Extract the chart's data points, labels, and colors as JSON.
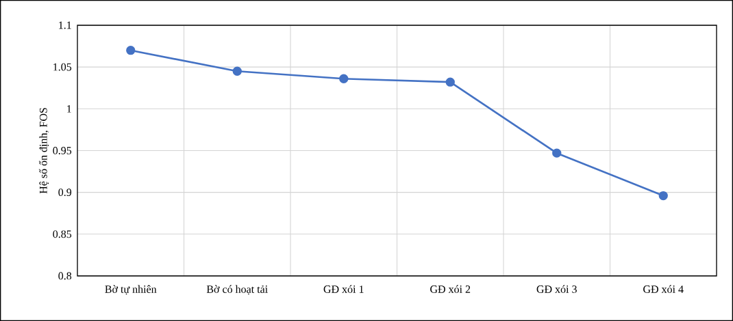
{
  "chart_data": {
    "type": "line",
    "ylabel": "Hệ số ổn định, FOS",
    "categories": [
      "Bờ tự nhiên",
      "Bờ có hoạt tải",
      "GĐ xói 1",
      "GĐ xói 2",
      "GĐ xói 3",
      "GĐ xói 4"
    ],
    "values": [
      1.07,
      1.045,
      1.036,
      1.032,
      0.947,
      0.896
    ],
    "color": "#4472c4",
    "marker": "circle",
    "line_style": "solid",
    "ylim": [
      0.8,
      1.1
    ],
    "yticks": [
      0.8,
      0.85,
      0.9,
      0.95,
      1,
      1.05,
      1.1
    ],
    "grid": true
  }
}
